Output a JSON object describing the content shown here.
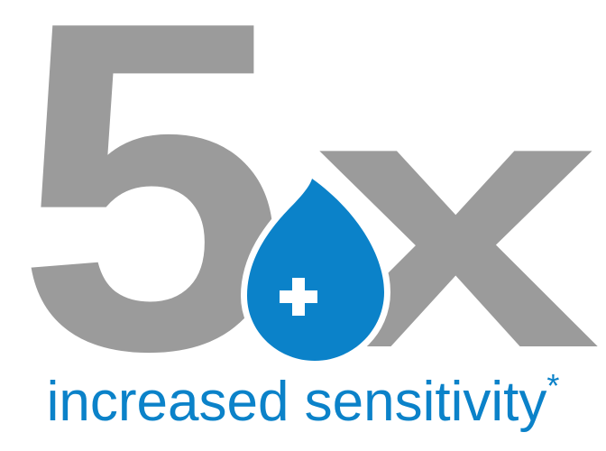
{
  "headline": {
    "number": "5",
    "multiplier": "x",
    "number_color": "#9b9b9b"
  },
  "drop_icon": {
    "icon": "water-drop-plus-icon",
    "color": "#0b82c9",
    "symbol_color": "#ffffff"
  },
  "tagline": {
    "text": "increased sensitivity",
    "footnote_mark": "*",
    "color": "#0b82c9"
  }
}
